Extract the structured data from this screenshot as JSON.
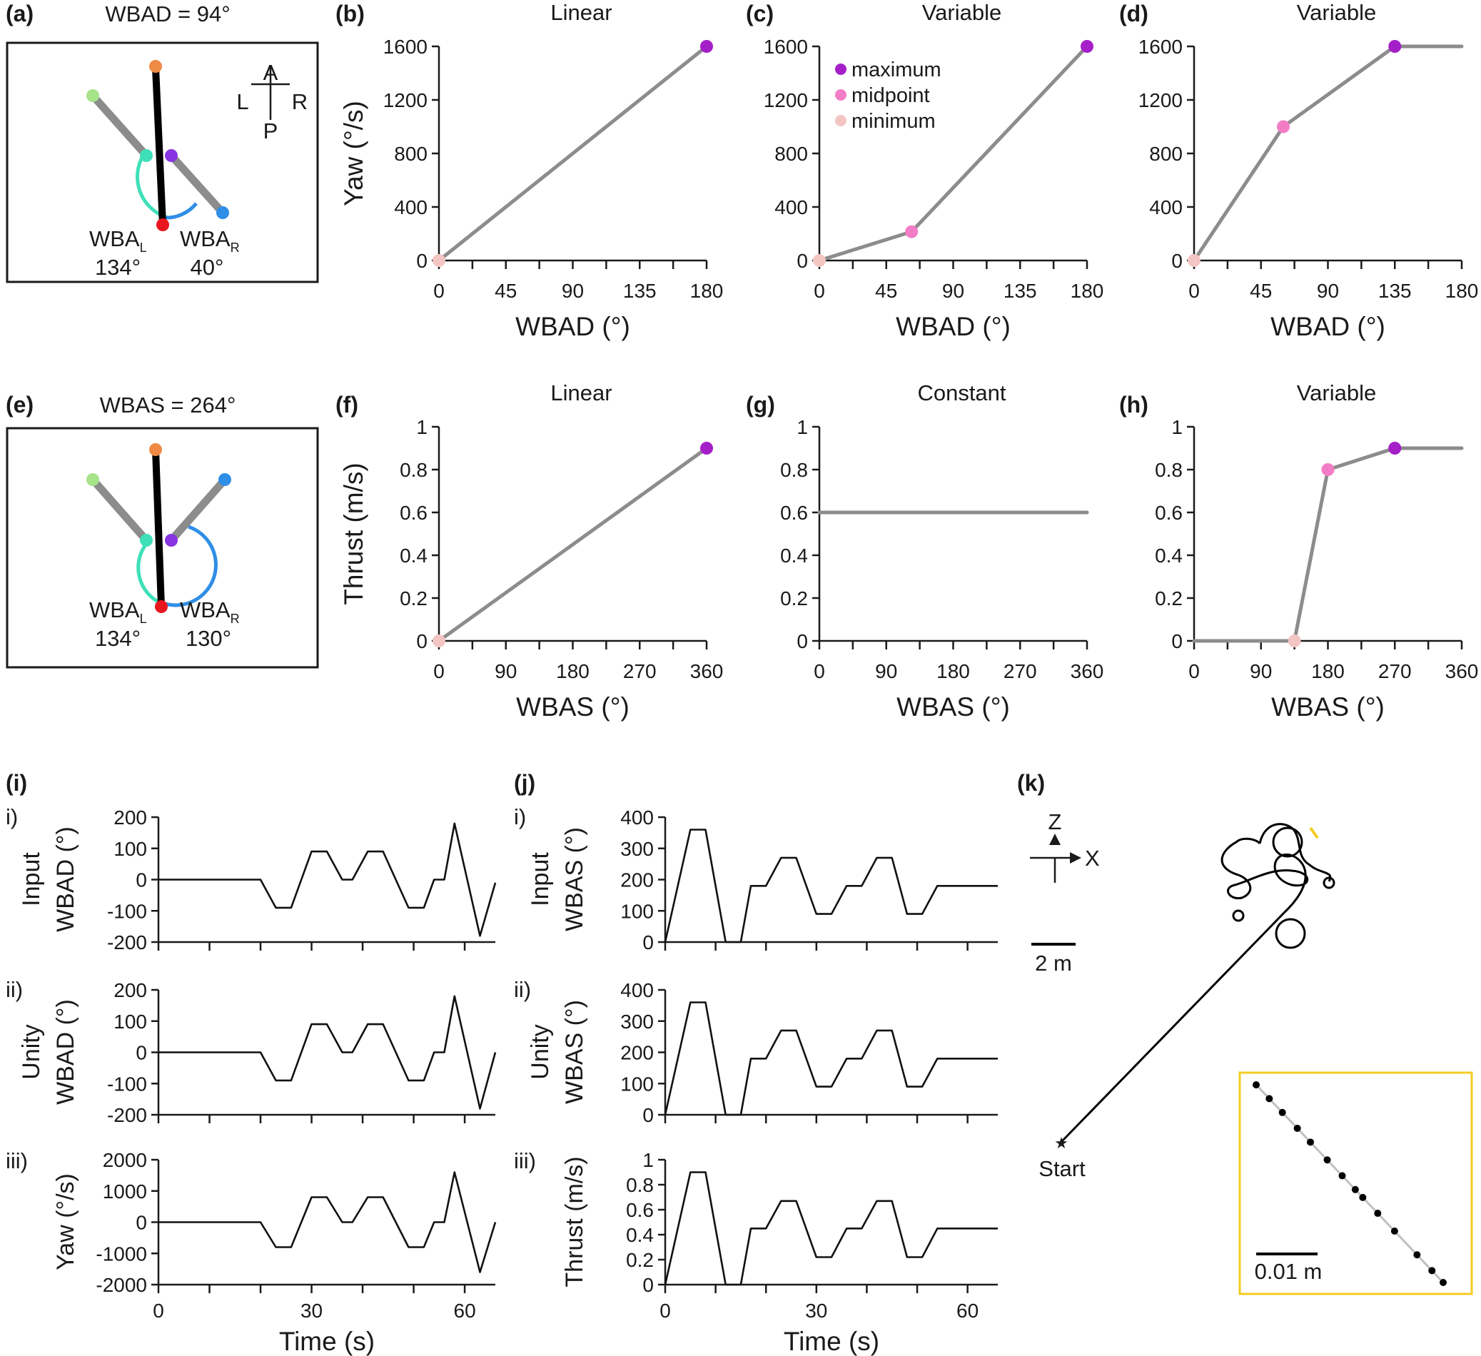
{
  "colors": {
    "maximum": "#a41fc8",
    "midpoint": "#f27dc6",
    "minimum": "#f3c5c3",
    "line": "#8c8c8c",
    "orange": "#ee8a44",
    "red": "#e8171d",
    "light_green": "#a6e389",
    "teal": "#3fe0b9",
    "purple": "#8735e2",
    "blue": "#2f8ee6",
    "trajectory_start": "#3d7ed6",
    "inset_border": "#f2cc21"
  },
  "panels": {
    "a": {
      "letter": "(a)",
      "title": "WBAD = 94°",
      "compass": {
        "a": "A",
        "l": "L",
        "r": "R",
        "p": "P"
      },
      "left_label": "WBA",
      "left_sub": "L",
      "left_value": "134°",
      "right_label": "WBA",
      "right_sub": "R",
      "right_value": "40°"
    },
    "e": {
      "letter": "(e)",
      "title": "WBAS = 264°",
      "left_label": "WBA",
      "left_sub": "L",
      "left_value": "134°",
      "right_label": "WBA",
      "right_sub": "R",
      "right_value": "130°"
    },
    "b": {
      "letter": "(b)"
    },
    "c": {
      "letter": "(c)"
    },
    "d": {
      "letter": "(d)"
    },
    "f": {
      "letter": "(f)"
    },
    "g": {
      "letter": "(g)"
    },
    "h": {
      "letter": "(h)"
    },
    "i": {
      "letter": "(i)",
      "sub": [
        "i)",
        "ii)",
        "iii)"
      ],
      "rowlabels": [
        [
          "Input",
          "WBAD (°)"
        ],
        [
          "Unity",
          "WBAD (°)"
        ],
        [
          "Yaw (°/s)"
        ]
      ]
    },
    "j": {
      "letter": "(j)",
      "sub": [
        "i)",
        "ii)",
        "iii)"
      ],
      "rowlabels": [
        [
          "Input",
          "WBAS (°)"
        ],
        [
          "Unity",
          "WBAS (°)"
        ],
        [
          "Thrust (m/s)"
        ]
      ]
    },
    "k": {
      "letter": "(k)",
      "z": "Z",
      "x": "X",
      "scale": "2 m",
      "start": "Start",
      "inset_scale": "0.01 m"
    }
  },
  "legend": {
    "maximum": "maximum",
    "midpoint": "midpoint",
    "minimum": "minimum"
  },
  "chart_data": [
    {
      "id": "b",
      "type": "line",
      "title": "Linear",
      "xlabel": "WBAD (°)",
      "ylabel": "Yaw (°/s)",
      "xlim": [
        0,
        180
      ],
      "ylim": [
        0,
        1600
      ],
      "xticks": [
        0,
        45,
        90,
        135,
        180
      ],
      "yticks": [
        0,
        400,
        800,
        1200,
        1600
      ],
      "x": [
        0,
        180
      ],
      "y": [
        0,
        1600
      ],
      "markers": [
        {
          "x": 0,
          "y": 0,
          "kind": "minimum"
        },
        {
          "x": 180,
          "y": 1600,
          "kind": "maximum"
        }
      ]
    },
    {
      "id": "c",
      "type": "line",
      "title": "Variable",
      "xlabel": "WBAD (°)",
      "ylabel": "",
      "xlim": [
        0,
        180
      ],
      "ylim": [
        0,
        1600
      ],
      "xticks": [
        0,
        45,
        90,
        135,
        180
      ],
      "yticks": [
        0,
        400,
        800,
        1200,
        1600
      ],
      "x": [
        0,
        62,
        180
      ],
      "y": [
        0,
        215,
        1600
      ],
      "markers": [
        {
          "x": 0,
          "y": 0,
          "kind": "minimum"
        },
        {
          "x": 62,
          "y": 215,
          "kind": "midpoint"
        },
        {
          "x": 180,
          "y": 1600,
          "kind": "maximum"
        }
      ]
    },
    {
      "id": "d",
      "type": "line",
      "title": "Variable",
      "xlabel": "WBAD (°)",
      "ylabel": "",
      "xlim": [
        0,
        180
      ],
      "ylim": [
        0,
        1600
      ],
      "xticks": [
        0,
        45,
        90,
        135,
        180
      ],
      "yticks": [
        0,
        400,
        800,
        1200,
        1600
      ],
      "x": [
        0,
        60,
        135,
        180
      ],
      "y": [
        0,
        1000,
        1600,
        1600
      ],
      "markers": [
        {
          "x": 0,
          "y": 0,
          "kind": "minimum"
        },
        {
          "x": 60,
          "y": 1000,
          "kind": "midpoint"
        },
        {
          "x": 135,
          "y": 1600,
          "kind": "maximum"
        }
      ]
    },
    {
      "id": "f",
      "type": "line",
      "title": "Linear",
      "xlabel": "WBAS (°)",
      "ylabel": "Thrust (m/s)",
      "xlim": [
        0,
        360
      ],
      "ylim": [
        0,
        1
      ],
      "xticks": [
        0,
        90,
        180,
        270,
        360
      ],
      "yticks": [
        0,
        0.2,
        0.4,
        0.6,
        0.8,
        1
      ],
      "x": [
        0,
        360
      ],
      "y": [
        0,
        0.9
      ],
      "markers": [
        {
          "x": 0,
          "y": 0,
          "kind": "minimum"
        },
        {
          "x": 360,
          "y": 0.9,
          "kind": "maximum"
        }
      ]
    },
    {
      "id": "g",
      "type": "line",
      "title": "Constant",
      "xlabel": "WBAS (°)",
      "ylabel": "",
      "xlim": [
        0,
        360
      ],
      "ylim": [
        0,
        1
      ],
      "xticks": [
        0,
        90,
        180,
        270,
        360
      ],
      "yticks": [
        0,
        0.2,
        0.4,
        0.6,
        0.8,
        1
      ],
      "x": [
        0,
        360
      ],
      "y": [
        0.6,
        0.6
      ],
      "markers": []
    },
    {
      "id": "h",
      "type": "line",
      "title": "Variable",
      "xlabel": "WBAS (°)",
      "ylabel": "",
      "xlim": [
        0,
        360
      ],
      "ylim": [
        0,
        1
      ],
      "xticks": [
        0,
        90,
        180,
        270,
        360
      ],
      "yticks": [
        0,
        0.2,
        0.4,
        0.6,
        0.8,
        1
      ],
      "x": [
        0,
        135,
        180,
        270,
        360
      ],
      "y": [
        0,
        0,
        0.8,
        0.9,
        0.9
      ],
      "markers": [
        {
          "x": 135,
          "y": 0,
          "kind": "minimum"
        },
        {
          "x": 180,
          "y": 0.8,
          "kind": "midpoint"
        },
        {
          "x": 270,
          "y": 0.9,
          "kind": "maximum"
        }
      ]
    },
    {
      "id": "i1",
      "type": "line",
      "xlim": [
        0,
        66
      ],
      "ylim": [
        -200,
        200
      ],
      "yticks": [
        -200,
        -100,
        0,
        100,
        200
      ],
      "xticks": [
        0,
        10,
        20,
        30,
        40,
        50,
        60
      ],
      "x": [
        0,
        20,
        23,
        26,
        30,
        33,
        36,
        38,
        41,
        44,
        49,
        52,
        54,
        56,
        58,
        63,
        66
      ],
      "y": [
        0,
        0,
        -90,
        -90,
        90,
        90,
        0,
        0,
        90,
        90,
        -90,
        -90,
        0,
        0,
        180,
        -180,
        -10
      ]
    },
    {
      "id": "i2",
      "type": "line",
      "xlim": [
        0,
        66
      ],
      "ylim": [
        -200,
        200
      ],
      "yticks": [
        -200,
        -100,
        0,
        100,
        200
      ],
      "xticks": [
        0,
        10,
        20,
        30,
        40,
        50,
        60
      ],
      "x": [
        0,
        20,
        23,
        26,
        30,
        33,
        36,
        38,
        41,
        44,
        49,
        52,
        54,
        56,
        58,
        63,
        66
      ],
      "y": [
        0,
        0,
        -90,
        -90,
        90,
        90,
        0,
        0,
        90,
        90,
        -90,
        -90,
        0,
        0,
        180,
        -180,
        0
      ]
    },
    {
      "id": "i3",
      "type": "line",
      "xlim": [
        0,
        66
      ],
      "ylim": [
        -2000,
        2000
      ],
      "yticks": [
        -2000,
        -1000,
        0,
        1000,
        2000
      ],
      "xticks": [
        0,
        10,
        20,
        30,
        40,
        50,
        60
      ],
      "x": [
        0,
        20,
        23,
        26,
        30,
        33,
        36,
        38,
        41,
        44,
        49,
        52,
        54,
        56,
        58,
        63,
        66
      ],
      "y": [
        0,
        0,
        -800,
        -800,
        800,
        800,
        0,
        0,
        800,
        800,
        -800,
        -800,
        0,
        0,
        1600,
        -1600,
        0
      ],
      "xlabel": "Time (s)",
      "xticklabels": [
        "0",
        "30",
        "60"
      ]
    },
    {
      "id": "j1",
      "type": "line",
      "xlim": [
        0,
        66
      ],
      "ylim": [
        0,
        400
      ],
      "yticks": [
        0,
        100,
        200,
        300,
        400
      ],
      "xticks": [
        0,
        10,
        20,
        30,
        40,
        50,
        60
      ],
      "x": [
        0,
        5,
        8,
        12,
        15,
        17,
        20,
        23,
        26,
        30,
        33,
        36,
        39,
        42,
        45,
        48,
        51,
        54,
        66
      ],
      "y": [
        0,
        360,
        360,
        0,
        0,
        180,
        180,
        270,
        270,
        90,
        90,
        180,
        180,
        270,
        270,
        90,
        90,
        180,
        180
      ]
    },
    {
      "id": "j2",
      "type": "line",
      "xlim": [
        0,
        66
      ],
      "ylim": [
        0,
        400
      ],
      "yticks": [
        0,
        100,
        200,
        300,
        400
      ],
      "xticks": [
        0,
        10,
        20,
        30,
        40,
        50,
        60
      ],
      "x": [
        0,
        5,
        8,
        12,
        15,
        17,
        20,
        23,
        26,
        30,
        33,
        36,
        39,
        42,
        45,
        48,
        51,
        54,
        66
      ],
      "y": [
        0,
        360,
        360,
        0,
        0,
        180,
        180,
        270,
        270,
        90,
        90,
        180,
        180,
        270,
        270,
        90,
        90,
        180,
        180
      ]
    },
    {
      "id": "j3",
      "type": "line",
      "xlim": [
        0,
        66
      ],
      "ylim": [
        0,
        1
      ],
      "yticks": [
        0,
        0.2,
        0.4,
        0.6,
        0.8,
        1
      ],
      "xticks": [
        0,
        10,
        20,
        30,
        40,
        50,
        60
      ],
      "x": [
        0,
        5,
        8,
        12,
        15,
        17,
        20,
        23,
        26,
        30,
        33,
        36,
        39,
        42,
        45,
        48,
        51,
        54,
        66
      ],
      "y": [
        0,
        0.9,
        0.9,
        0,
        0,
        0.45,
        0.45,
        0.67,
        0.67,
        0.22,
        0.22,
        0.45,
        0.45,
        0.67,
        0.67,
        0.22,
        0.22,
        0.45,
        0.45
      ],
      "xlabel": "Time (s)",
      "xticklabels": [
        "0",
        "30",
        "60"
      ]
    }
  ]
}
